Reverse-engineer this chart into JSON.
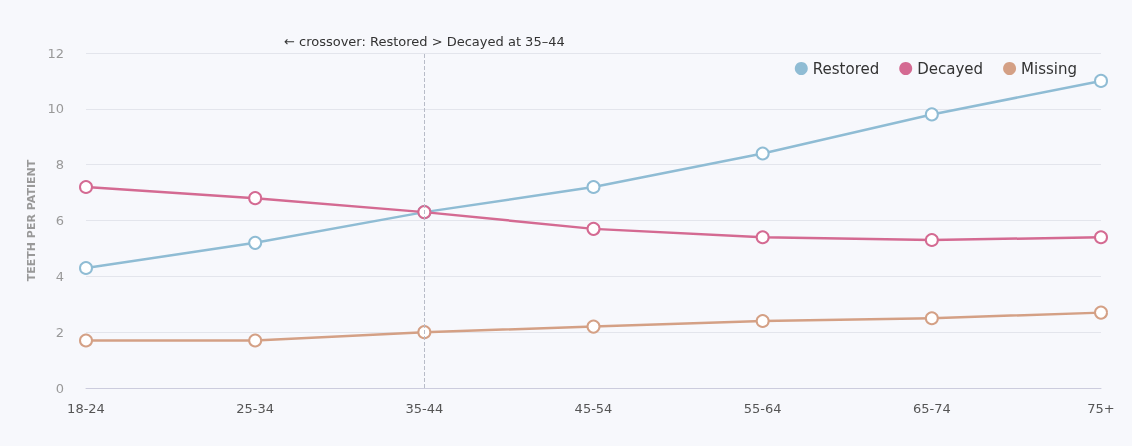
{
  "chart_data": {
    "type": "line",
    "ylabel": "TEETH PER PATIENT",
    "categories": [
      "18-24",
      "25-34",
      "35-44",
      "45-54",
      "55-64",
      "65-74",
      "75+"
    ],
    "series": [
      {
        "name": "Restored",
        "color": "#8fbcd4",
        "values": [
          4.3,
          5.2,
          6.3,
          7.2,
          8.4,
          9.8,
          11.0
        ]
      },
      {
        "name": "Decayed",
        "color": "#d46a92",
        "values": [
          7.2,
          6.8,
          6.3,
          5.7,
          5.4,
          5.3,
          5.4
        ]
      },
      {
        "name": "Missing",
        "color": "#d4a085",
        "values": [
          1.7,
          1.7,
          2.0,
          2.2,
          2.4,
          2.5,
          2.7
        ]
      }
    ],
    "ylim": [
      0,
      12
    ],
    "yticks": [
      0,
      2,
      4,
      6,
      8,
      10,
      12
    ],
    "grid": "y",
    "legend": "top right",
    "marker": "circle",
    "line_style": "solid",
    "ref_lines": [
      {
        "axis": "x",
        "value": "35-44",
        "label": "← crossover: Restored > Decayed at 35–44",
        "color": "#b8bcc8",
        "line_style": "dashed"
      }
    ]
  }
}
